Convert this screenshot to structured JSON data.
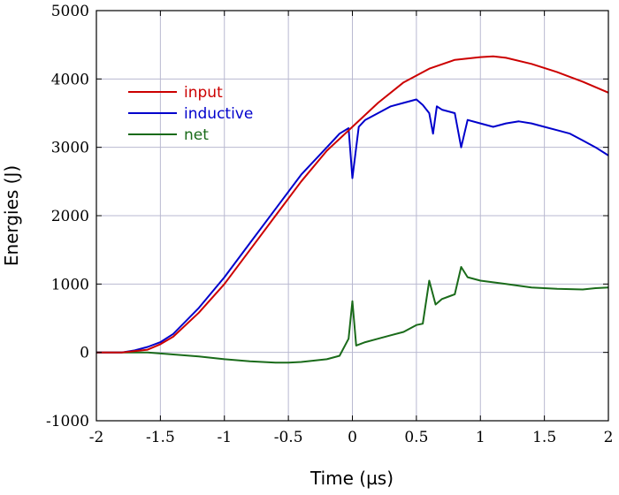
{
  "chart_data": {
    "type": "line",
    "xlabel": "Time (µs)",
    "ylabel": "Energies (J)",
    "xlim": [
      -2,
      2
    ],
    "ylim": [
      -1000,
      5000
    ],
    "xticks": [
      -2,
      -1.5,
      -1,
      -0.5,
      0,
      0.5,
      1,
      1.5,
      2
    ],
    "xtick_labels": [
      "-2",
      "-1.5",
      "-1",
      "-0.5",
      "0",
      "0.5",
      "1",
      "1.5",
      "2"
    ],
    "yticks": [
      -1000,
      0,
      1000,
      2000,
      3000,
      4000,
      5000
    ],
    "ytick_labels": [
      "-1000",
      "0",
      "1000",
      "2000",
      "3000",
      "4000",
      "5000"
    ],
    "grid": true,
    "legend_position": "top-left",
    "series": [
      {
        "name": "input",
        "color": "#cc0000",
        "x": [
          -2,
          -1.8,
          -1.6,
          -1.5,
          -1.4,
          -1.2,
          -1.0,
          -0.8,
          -0.6,
          -0.4,
          -0.2,
          0,
          0.2,
          0.4,
          0.6,
          0.8,
          1.0,
          1.1,
          1.2,
          1.4,
          1.6,
          1.8,
          2.0
        ],
        "values": [
          0,
          0,
          40,
          120,
          230,
          580,
          1000,
          1500,
          2000,
          2500,
          2950,
          3300,
          3650,
          3950,
          4150,
          4280,
          4320,
          4330,
          4310,
          4220,
          4100,
          3960,
          3800
        ]
      },
      {
        "name": "inductive",
        "color": "#0000cc",
        "x": [
          -2,
          -1.8,
          -1.7,
          -1.6,
          -1.5,
          -1.4,
          -1.2,
          -1.0,
          -0.8,
          -0.6,
          -0.4,
          -0.2,
          -0.1,
          -0.03,
          0.0,
          0.05,
          0.1,
          0.2,
          0.3,
          0.4,
          0.5,
          0.55,
          0.6,
          0.63,
          0.66,
          0.7,
          0.8,
          0.85,
          0.9,
          1.0,
          1.1,
          1.2,
          1.3,
          1.4,
          1.5,
          1.6,
          1.7,
          1.8,
          1.9,
          2.0
        ],
        "values": [
          0,
          0,
          30,
          80,
          150,
          270,
          650,
          1100,
          1600,
          2100,
          2600,
          3000,
          3200,
          3280,
          2550,
          3300,
          3400,
          3500,
          3600,
          3650,
          3700,
          3620,
          3500,
          3200,
          3600,
          3550,
          3500,
          3000,
          3400,
          3350,
          3300,
          3350,
          3380,
          3350,
          3300,
          3250,
          3200,
          3100,
          3000,
          2880
        ]
      },
      {
        "name": "net",
        "color": "#1a6b1a",
        "x": [
          -2,
          -1.8,
          -1.6,
          -1.4,
          -1.2,
          -1.0,
          -0.8,
          -0.6,
          -0.5,
          -0.4,
          -0.2,
          -0.1,
          -0.03,
          0.0,
          0.03,
          0.1,
          0.2,
          0.3,
          0.4,
          0.5,
          0.55,
          0.6,
          0.65,
          0.7,
          0.8,
          0.85,
          0.9,
          1.0,
          1.2,
          1.4,
          1.6,
          1.8,
          1.9,
          2.0
        ],
        "values": [
          0,
          0,
          0,
          -30,
          -60,
          -100,
          -130,
          -150,
          -150,
          -140,
          -100,
          -50,
          200,
          750,
          100,
          150,
          200,
          250,
          300,
          400,
          420,
          1050,
          700,
          780,
          850,
          1250,
          1100,
          1050,
          1000,
          950,
          930,
          920,
          940,
          950
        ]
      }
    ]
  }
}
